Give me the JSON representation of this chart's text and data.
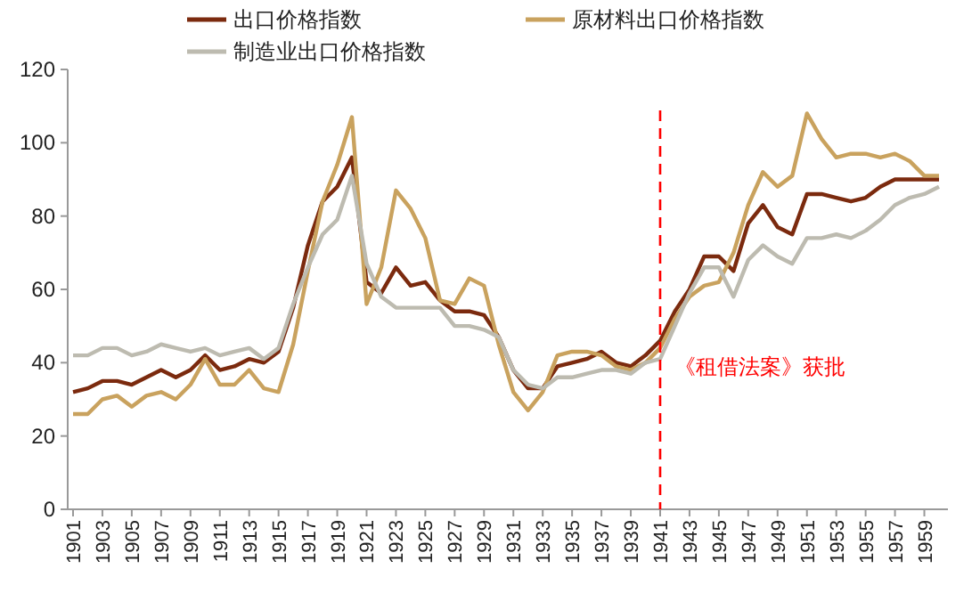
{
  "chart_data": {
    "type": "line",
    "categories": [
      "1901",
      null,
      "1903",
      null,
      "1905",
      null,
      "1907",
      null,
      "1909",
      null,
      "1911",
      null,
      "1913",
      null,
      "1915",
      null,
      "1917",
      null,
      "1919",
      null,
      "1921",
      null,
      "1923",
      null,
      "1925",
      null,
      "1927",
      null,
      "1929",
      null,
      "1931",
      null,
      "1933",
      null,
      "1935",
      null,
      "1937",
      null,
      "1939",
      null,
      "1941",
      null,
      "1943",
      null,
      "1945",
      null,
      "1947",
      null,
      "1949",
      null,
      "1951",
      null,
      "1953",
      null,
      "1955",
      null,
      "1957",
      null,
      "1959",
      null
    ],
    "series": [
      {
        "name": "出口价格指数",
        "color": "#7b2a0e",
        "values": [
          32,
          33,
          35,
          35,
          34,
          36,
          38,
          36,
          38,
          42,
          38,
          39,
          41,
          40,
          43,
          55,
          72,
          84,
          88,
          96,
          62,
          59,
          66,
          61,
          62,
          57,
          54,
          54,
          53,
          47,
          38,
          33,
          33,
          39,
          40,
          41,
          43,
          40,
          39,
          42,
          46,
          54,
          60,
          69,
          69,
          65,
          78,
          83,
          77,
          75,
          86,
          86,
          85,
          84,
          85,
          88,
          90,
          90,
          90,
          90
        ]
      },
      {
        "name": "原材料出口价格指数",
        "color": "#c9a25e",
        "values": [
          26,
          26,
          30,
          31,
          28,
          31,
          32,
          30,
          34,
          41,
          34,
          34,
          38,
          33,
          32,
          45,
          65,
          84,
          94,
          107,
          56,
          66,
          87,
          82,
          74,
          57,
          56,
          63,
          61,
          45,
          32,
          27,
          32,
          42,
          43,
          43,
          42,
          39,
          38,
          40,
          44,
          52,
          58,
          61,
          62,
          70,
          83,
          92,
          88,
          91,
          108,
          101,
          96,
          97,
          97,
          96,
          97,
          95,
          91,
          91
        ]
      },
      {
        "name": "制造业出口价格指数",
        "color": "#bdbbb0",
        "values": [
          42,
          42,
          44,
          44,
          42,
          43,
          45,
          44,
          43,
          44,
          42,
          43,
          44,
          41,
          44,
          56,
          66,
          75,
          79,
          91,
          67,
          58,
          55,
          55,
          55,
          55,
          50,
          50,
          49,
          47,
          38,
          34,
          33,
          36,
          36,
          37,
          38,
          38,
          37,
          40,
          41,
          50,
          59,
          66,
          66,
          58,
          68,
          72,
          69,
          67,
          74,
          74,
          75,
          74,
          76,
          79,
          83,
          85,
          86,
          88
        ]
      }
    ],
    "ylim": [
      0,
      120
    ],
    "yticks": [
      0,
      20,
      40,
      60,
      80,
      100,
      120
    ],
    "ref_lines": [
      {
        "axis": "x",
        "value": "1941",
        "label": "《租借法案》获批",
        "color": "#ff0000",
        "line_style": "dashed"
      }
    ],
    "legend": "top",
    "grid": false,
    "line_style": "solid",
    "marker": "none"
  }
}
